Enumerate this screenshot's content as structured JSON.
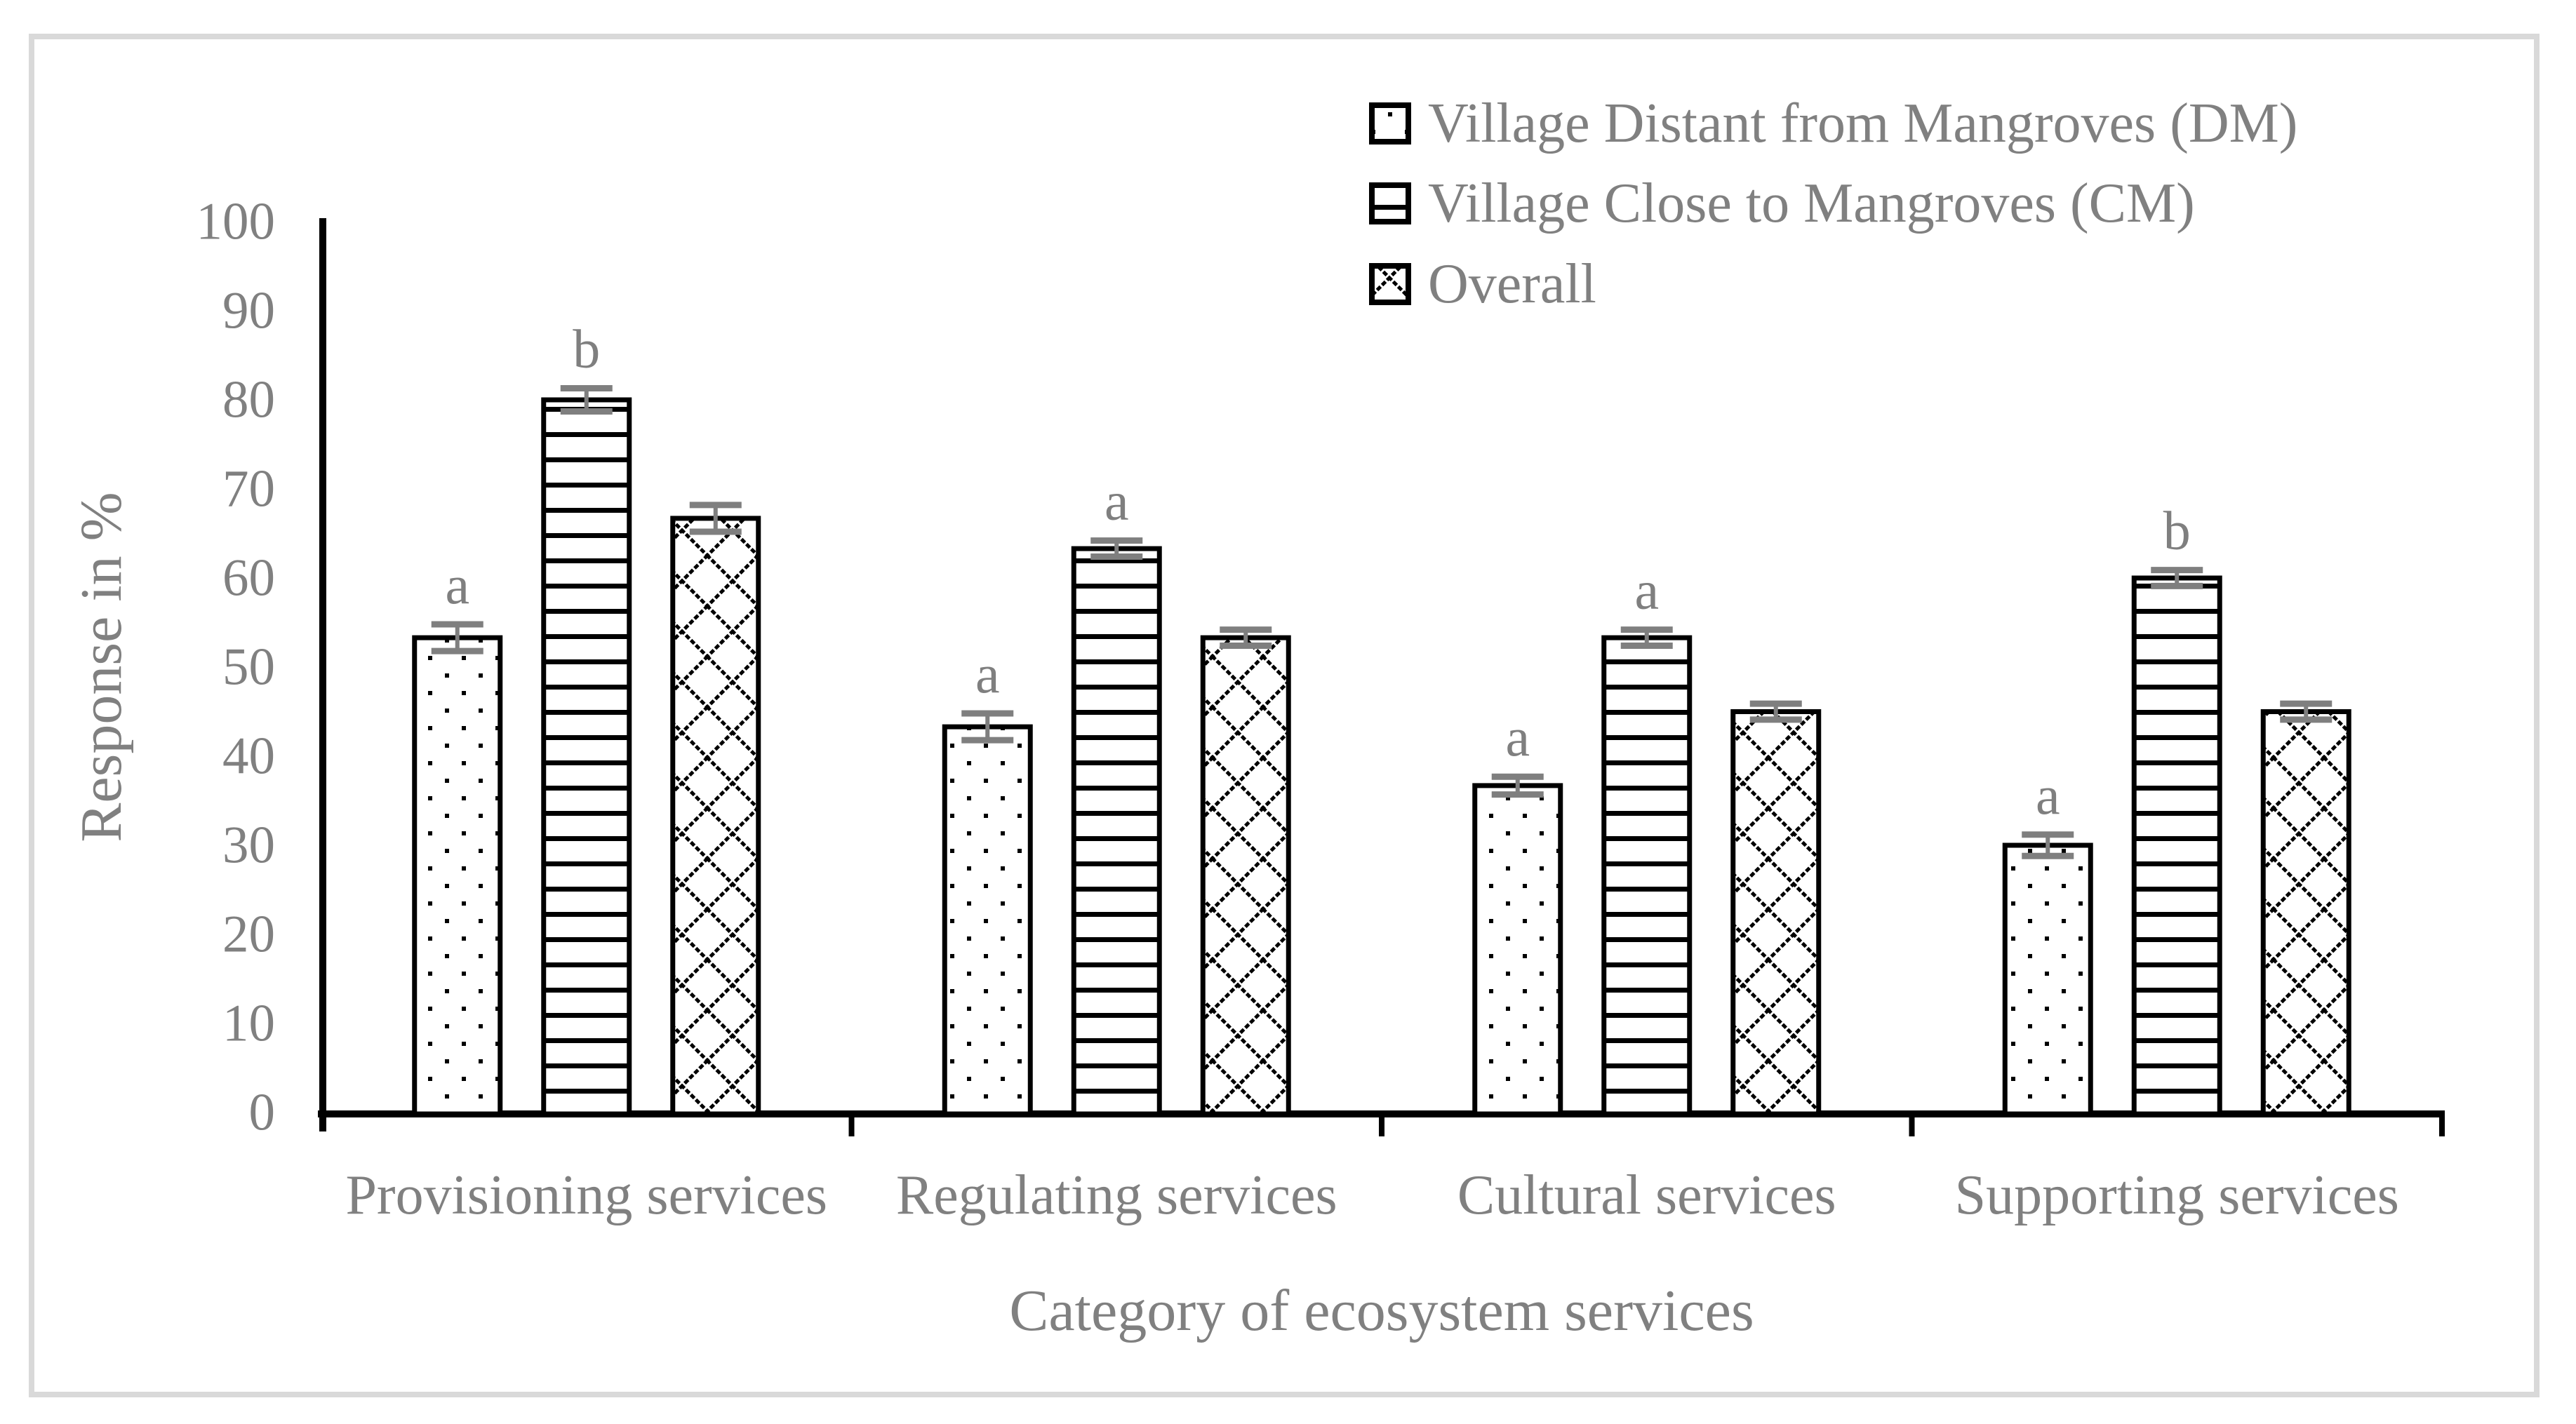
{
  "figure": {
    "background": "#ffffff",
    "border_color": "#d9d9d9"
  },
  "chart_data": {
    "type": "bar",
    "title": "",
    "xlabel": "Category of ecosystem services",
    "ylabel": "Response in %",
    "ylim": [
      0,
      100
    ],
    "yticks": [
      0,
      10,
      20,
      30,
      40,
      50,
      60,
      70,
      80,
      90,
      100
    ],
    "grid": false,
    "legend_position": "top-right",
    "categories": [
      "Provisioning services",
      "Regulating services",
      "Cultural services",
      "Supporting services"
    ],
    "series": [
      {
        "key": "dm",
        "name": "Village Distant from Mangroves (DM)",
        "pattern": "dots",
        "values": [
          53.3,
          43.3,
          36.7,
          30.0
        ],
        "errors": [
          1.5,
          1.5,
          1.0,
          1.2
        ],
        "sig_letters": [
          "a",
          "a",
          "a",
          "a"
        ]
      },
      {
        "key": "cm",
        "name": "Village Close to Mangroves (CM)",
        "pattern": "hlines",
        "values": [
          80.0,
          63.3,
          53.3,
          60.0
        ],
        "errors": [
          1.3,
          0.9,
          0.9,
          0.9
        ],
        "sig_letters": [
          "b",
          "a",
          "a",
          "b"
        ]
      },
      {
        "key": "overall",
        "name": "Overall",
        "pattern": "crosshatch",
        "values": [
          66.7,
          53.3,
          45.0,
          45.0
        ],
        "errors": [
          1.5,
          0.9,
          0.9,
          0.9
        ],
        "sig_letters": [
          "",
          "",
          "",
          ""
        ]
      }
    ],
    "colors": {
      "bar_fill": "#ffffff",
      "bar_stroke": "#000000",
      "pattern_ink": "#000000",
      "error_bar": "#7f7f7f",
      "text": "#808080",
      "sig_letter": "#7f7f7f",
      "axis": "#000000"
    }
  }
}
